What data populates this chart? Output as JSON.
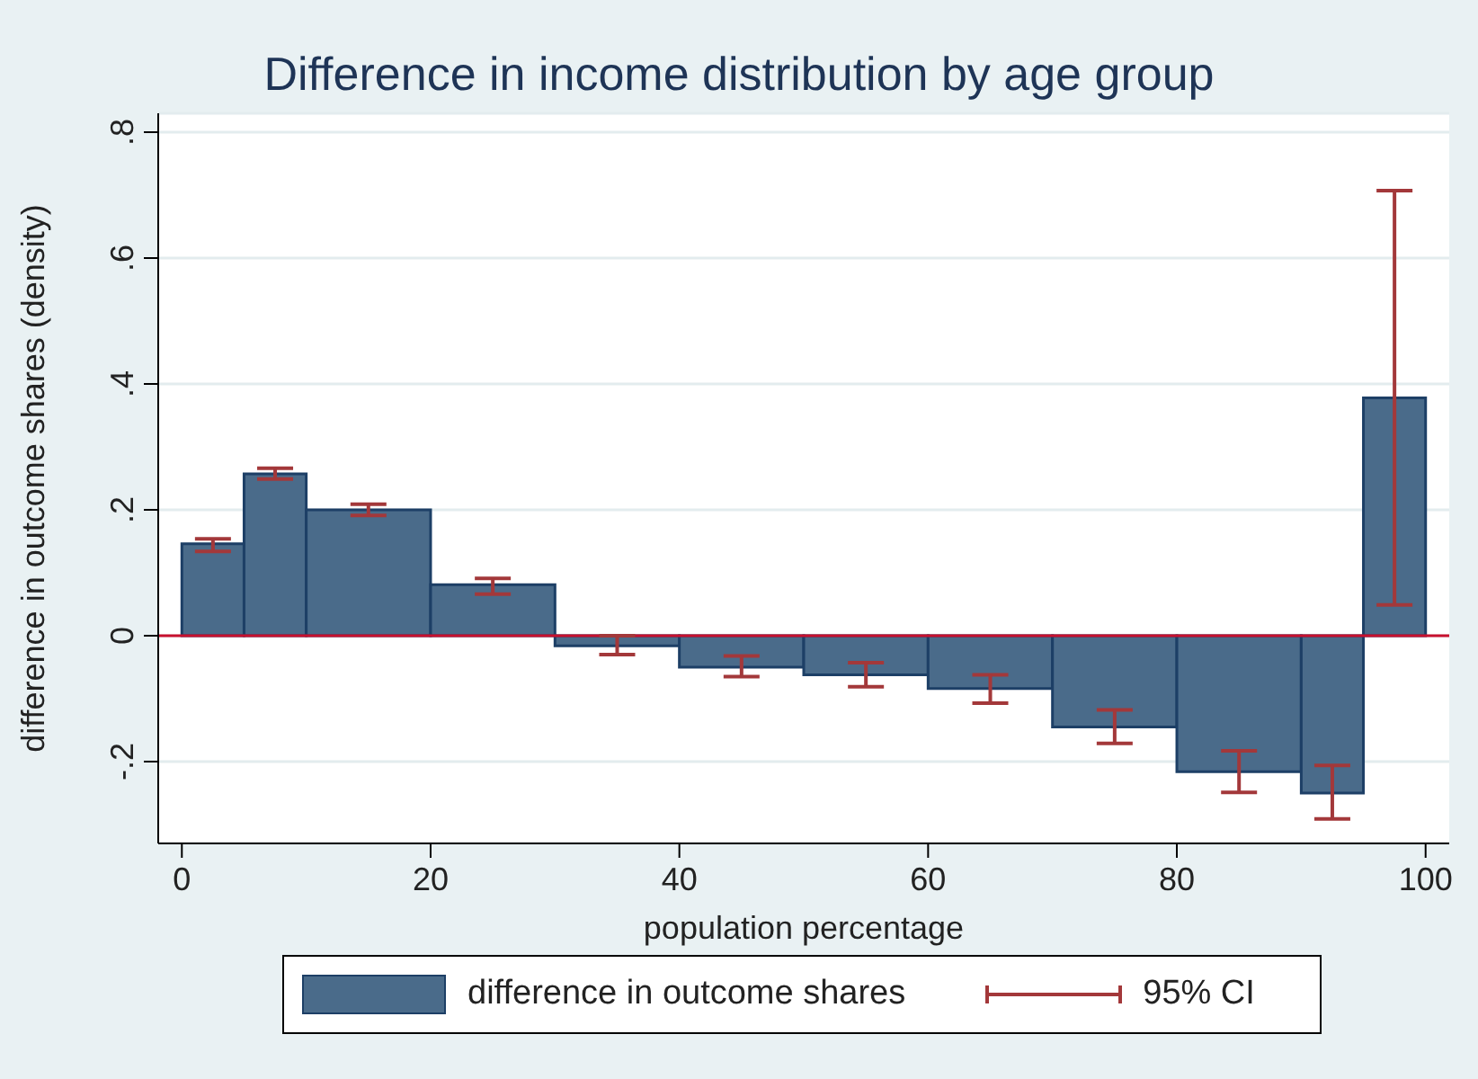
{
  "chart_data": {
    "type": "histogram",
    "title": "Difference in income distribution by age group",
    "xlabel": "population percentage",
    "ylabel": "difference in outcome shares (density)",
    "bins": [
      0,
      5,
      10,
      20,
      30,
      40,
      50,
      60,
      70,
      80,
      90,
      95,
      100
    ],
    "series": [
      {
        "name": "difference in outcome shares",
        "color": "#4a6b8a",
        "values": [
          0.146,
          0.257,
          0.2,
          0.081,
          -0.016,
          -0.05,
          -0.062,
          -0.084,
          -0.145,
          -0.216,
          -0.25,
          0.378
        ],
        "errors": [
          [
            0.134,
            0.154
          ],
          [
            0.249,
            0.266
          ],
          [
            0.191,
            0.209
          ],
          [
            0.066,
            0.091
          ],
          [
            -0.03,
            0.0
          ],
          [
            -0.065,
            -0.032
          ],
          [
            -0.081,
            -0.043
          ],
          [
            -0.107,
            -0.062
          ],
          [
            -0.171,
            -0.118
          ],
          [
            -0.249,
            -0.183
          ],
          [
            -0.291,
            -0.206
          ],
          [
            0.049,
            0.707
          ]
        ]
      }
    ],
    "annotations": [
      "95% CI"
    ],
    "xlim": [
      -1.9,
      101.9
    ],
    "xticks": [
      0,
      20,
      40,
      60,
      80,
      100
    ],
    "ylim": [
      -0.33,
      0.83
    ],
    "yticks": [
      {
        "value": -0.2,
        "label": "-.2"
      },
      0,
      {
        "value": 0.2,
        "label": ".2"
      },
      {
        "value": 0.4,
        "label": ".4"
      },
      {
        "value": 0.6,
        "label": ".6"
      },
      {
        "value": 0.8,
        "label": ".8"
      }
    ],
    "ref_lines": [
      {
        "axis": "y",
        "value": 0,
        "color": "#c8102e"
      }
    ],
    "grid": "y",
    "legend": "bottom"
  }
}
